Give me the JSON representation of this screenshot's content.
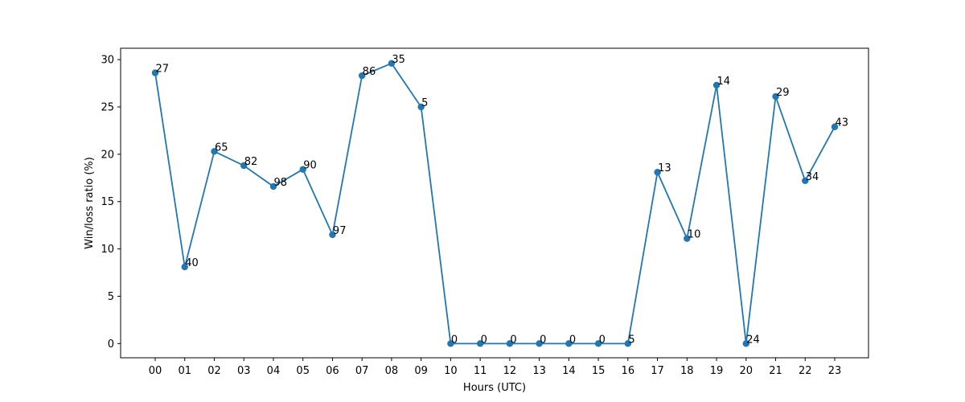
{
  "chart_data": {
    "type": "line",
    "title": "",
    "xlabel": "Hours (UTC)",
    "ylabel": "Win/loss ratio (%)",
    "ylim": [
      -1.5,
      31.2
    ],
    "yticks": [
      0,
      5,
      10,
      15,
      20,
      25,
      30
    ],
    "grid": false,
    "legend": "none",
    "categories": [
      "00",
      "01",
      "02",
      "03",
      "04",
      "05",
      "06",
      "07",
      "08",
      "09",
      "10",
      "11",
      "12",
      "13",
      "14",
      "15",
      "16",
      "17",
      "18",
      "19",
      "20",
      "21",
      "22",
      "23"
    ],
    "series": [
      {
        "color": "#1f77b4",
        "values": [
          28.6,
          8.1,
          20.3,
          18.8,
          16.6,
          18.4,
          11.5,
          28.3,
          29.6,
          25.0,
          0,
          0,
          0,
          0,
          0,
          0,
          0,
          18.1,
          11.1,
          27.3,
          0,
          26.1,
          17.2,
          22.9
        ],
        "point_labels": [
          "27",
          "40",
          "65",
          "82",
          "98",
          "90",
          "97",
          "86",
          "35",
          "5",
          "0",
          "0",
          "0",
          "0",
          "0",
          "0",
          "5",
          "13",
          "10",
          "14",
          "24",
          "29",
          "34",
          "43"
        ]
      }
    ]
  }
}
